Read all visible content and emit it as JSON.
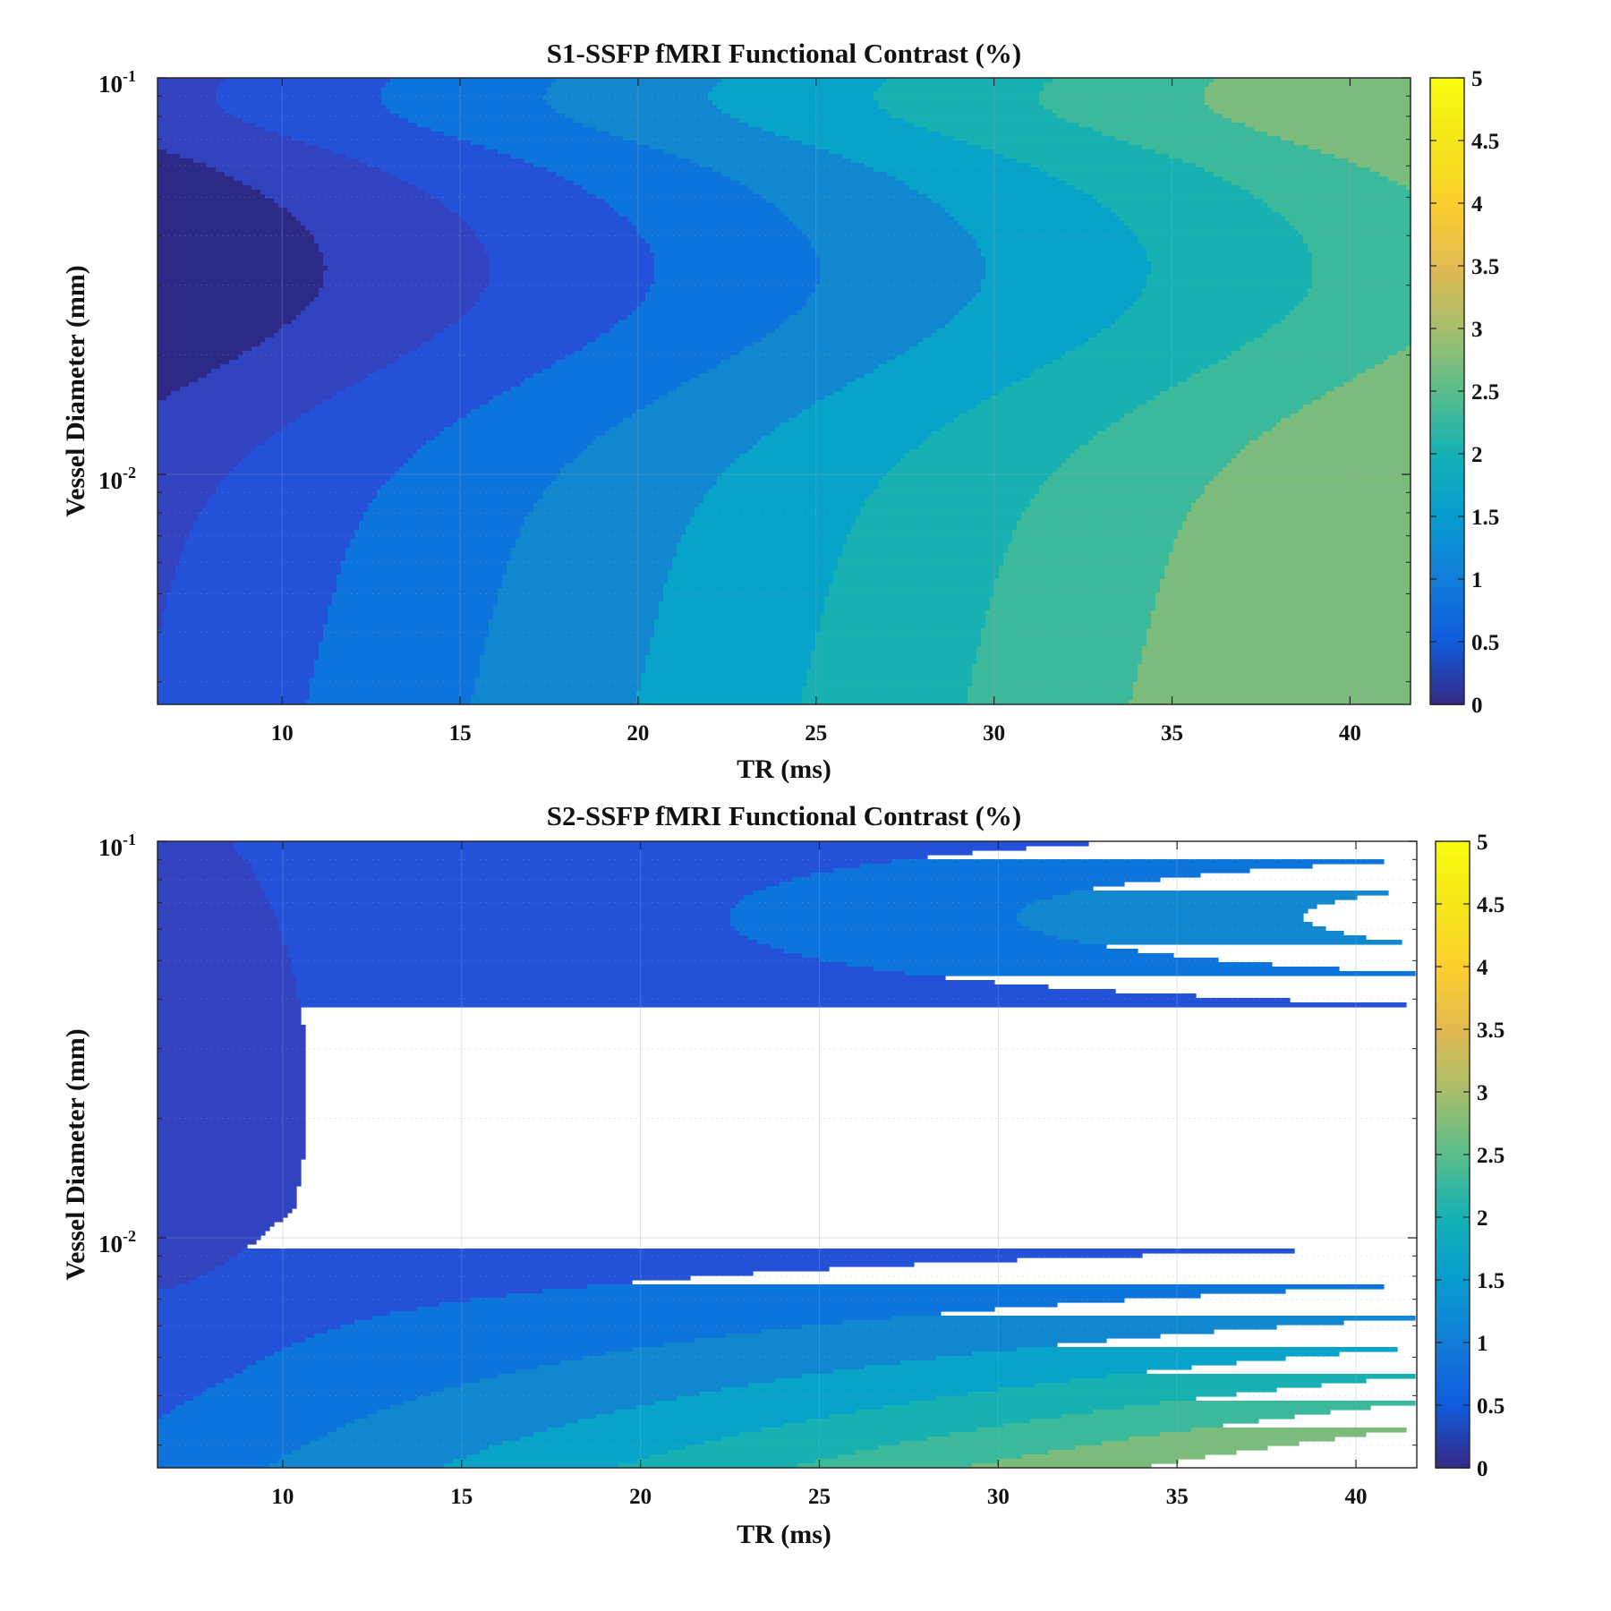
{
  "colors": {
    "levels": [
      "#2d2a87",
      "#3143c0",
      "#2352d9",
      "#0d74dc",
      "#1187cf",
      "#08a3c8",
      "#17b1b2",
      "#3cb99a",
      "#7bbc7d",
      "#b5bd60",
      "#ecb94c",
      "#f8fa0e"
    ],
    "contour_line": "#1a1a1a",
    "frame": "#222222",
    "grid": "#9aa6b0"
  },
  "chart_data": [
    {
      "type": "contourf",
      "title": "S1-SSFP fMRI Functional Contrast (%)",
      "xlabel": "TR (ms)",
      "ylabel": "Vessel Diameter (mm)",
      "xlim": [
        6.5,
        41.7
      ],
      "ylim_log10": [
        -2.58,
        -1.0
      ],
      "xticks": [
        10,
        15,
        20,
        25,
        30,
        35,
        40
      ],
      "xtick_labels": [
        "10",
        "15",
        "20",
        "25",
        "30",
        "35",
        "40"
      ],
      "yticks": [
        {
          "base": "10",
          "exp": "-1",
          "log10": -1
        },
        {
          "base": "10",
          "exp": "-2",
          "log10": -2
        }
      ],
      "colorbar": {
        "min": 0,
        "max": 5,
        "ticks": [
          "0",
          "0.5",
          "1",
          "1.5",
          "2",
          "2.5",
          "3",
          "3.5",
          "4",
          "4.5",
          "5"
        ]
      },
      "contour_levels": [
        0.4,
        0.9,
        1.4,
        1.9,
        2.4,
        2.9,
        3.4,
        3.9
      ],
      "model": {
        "variant": "s1"
      }
    },
    {
      "type": "contourf",
      "title": "S2-SSFP fMRI Functional Contrast (%)",
      "xlabel": "TR (ms)",
      "ylabel": "Vessel Diameter (mm)",
      "xlim": [
        6.5,
        41.7
      ],
      "ylim_log10": [
        -2.58,
        -1.0
      ],
      "xticks": [
        10,
        15,
        20,
        25,
        30,
        35,
        40
      ],
      "xtick_labels": [
        "10",
        "15",
        "20",
        "25",
        "30",
        "35",
        "40"
      ],
      "yticks": [
        {
          "base": "10",
          "exp": "-1",
          "log10": -1
        },
        {
          "base": "10",
          "exp": "-2",
          "log10": -2
        }
      ],
      "colorbar": {
        "min": 0,
        "max": 5,
        "ticks": [
          "0",
          "0.5",
          "1",
          "1.5",
          "2",
          "2.5",
          "3",
          "3.5",
          "4",
          "4.5",
          "5"
        ]
      },
      "contour_levels": [
        0.5,
        1.0,
        1.5,
        2.0,
        2.5,
        3.0,
        3.5,
        4.0,
        4.5
      ],
      "model": {
        "variant": "s2"
      }
    }
  ]
}
